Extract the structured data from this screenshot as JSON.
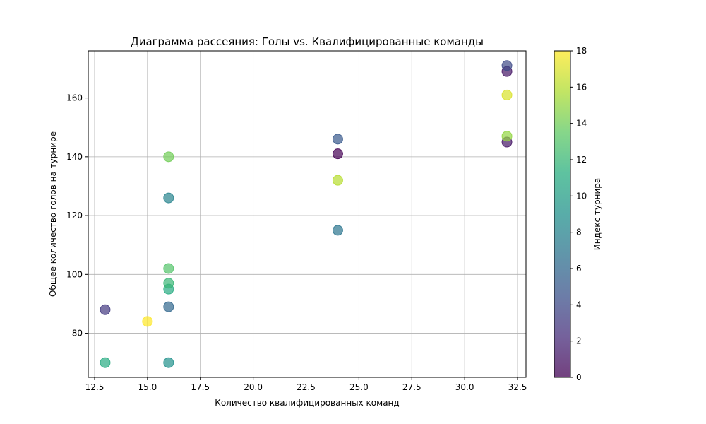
{
  "chart_data": {
    "type": "scatter",
    "title": "Диаграмма рассеяния: Голы vs. Квалифицированные команды",
    "xlabel": "Количество квалифицированных команд",
    "ylabel": "Общее количество голов на турнире",
    "xlim": [
      12.2,
      32.9
    ],
    "ylim": [
      65,
      176
    ],
    "x_ticks": [
      "12.5",
      "15.0",
      "17.5",
      "20.0",
      "22.5",
      "25.0",
      "27.5",
      "30.0",
      "32.5"
    ],
    "y_ticks": [
      "80",
      "100",
      "120",
      "140",
      "160"
    ],
    "x_tick_values": [
      12.5,
      15.0,
      17.5,
      20.0,
      22.5,
      25.0,
      27.5,
      30.0,
      32.5
    ],
    "y_tick_values": [
      80,
      100,
      120,
      140,
      160
    ],
    "grid": true,
    "colormap": "viridis",
    "colorbar": {
      "label": "Индекс турнира",
      "range": [
        0,
        18
      ],
      "ticks": [
        "0",
        "2",
        "4",
        "6",
        "8",
        "10",
        "12",
        "14",
        "16",
        "18"
      ],
      "tick_values": [
        0,
        2,
        4,
        6,
        8,
        10,
        12,
        14,
        16,
        18
      ]
    },
    "points": [
      {
        "x": 24,
        "y": 141,
        "c": 0
      },
      {
        "x": 32,
        "y": 145,
        "c": 1
      },
      {
        "x": 32,
        "y": 169,
        "c": 1
      },
      {
        "x": 13,
        "y": 88,
        "c": 3
      },
      {
        "x": 32,
        "y": 171,
        "c": 4
      },
      {
        "x": 24,
        "y": 146,
        "c": 5
      },
      {
        "x": 16,
        "y": 89,
        "c": 6
      },
      {
        "x": 24,
        "y": 115,
        "c": 7
      },
      {
        "x": 16,
        "y": 126,
        "c": 8
      },
      {
        "x": 16,
        "y": 70,
        "c": 9
      },
      {
        "x": 16,
        "y": 95,
        "c": 11
      },
      {
        "x": 13,
        "y": 70,
        "c": 11
      },
      {
        "x": 16,
        "y": 97,
        "c": 12
      },
      {
        "x": 16,
        "y": 102,
        "c": 13
      },
      {
        "x": 16,
        "y": 140,
        "c": 14
      },
      {
        "x": 32,
        "y": 147,
        "c": 15
      },
      {
        "x": 24,
        "y": 132,
        "c": 16
      },
      {
        "x": 32,
        "y": 161,
        "c": 17
      },
      {
        "x": 15,
        "y": 84,
        "c": 18
      }
    ]
  }
}
